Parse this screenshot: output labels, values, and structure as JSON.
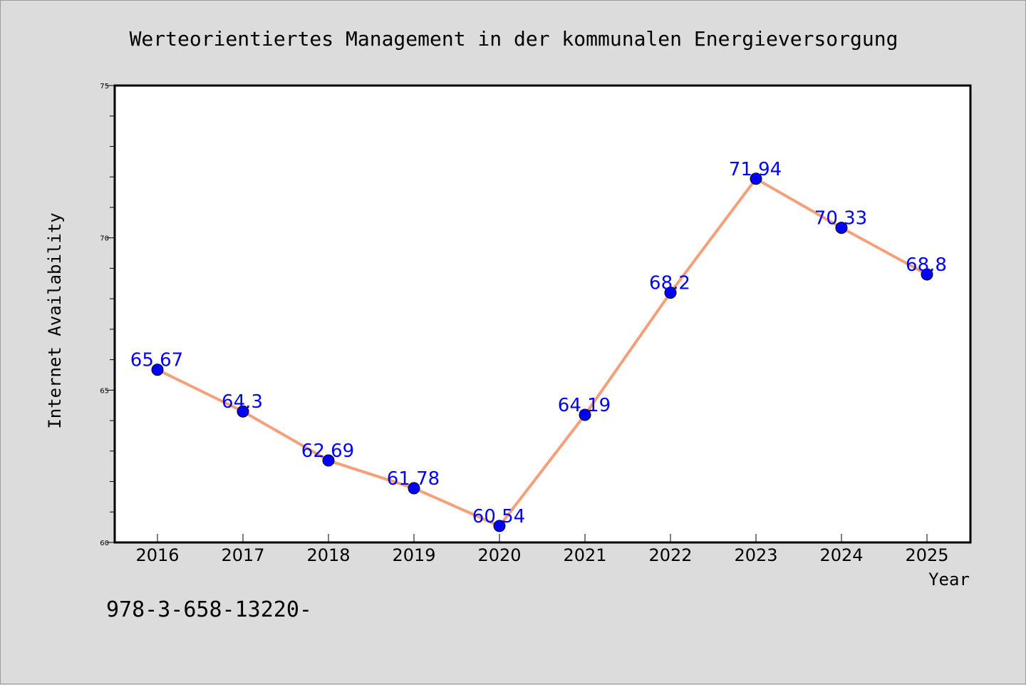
{
  "chart_data": {
    "type": "line",
    "title": "Werteorientiertes Management in der kommunalen Energieversorgung",
    "xlabel": "Year",
    "ylabel": "Internet Availability",
    "categories": [
      "2016",
      "2017",
      "2018",
      "2019",
      "2020",
      "2021",
      "2022",
      "2023",
      "2024",
      "2025"
    ],
    "series": [
      {
        "values": [
          65.67,
          64.3,
          62.69,
          61.78,
          60.54,
          64.19,
          68.2,
          71.94,
          70.33,
          68.8
        ],
        "line_color": "#f4a07a",
        "marker_color": "#0000ff"
      }
    ],
    "data_labels": [
      "65.67",
      "64.3",
      "62.69",
      "61.78",
      "60.54",
      "64.19",
      "68.2",
      "71.94",
      "70.33",
      "68.8"
    ],
    "yticks": [
      60,
      65,
      70,
      75
    ],
    "ytick_labels": [
      "60",
      "65",
      "70",
      "75"
    ],
    "ylim": [
      60,
      75
    ],
    "grid": false,
    "legend": "none",
    "label_color": "#0000ff"
  },
  "footer": {
    "isbn": "978-3-658-13220-"
  }
}
